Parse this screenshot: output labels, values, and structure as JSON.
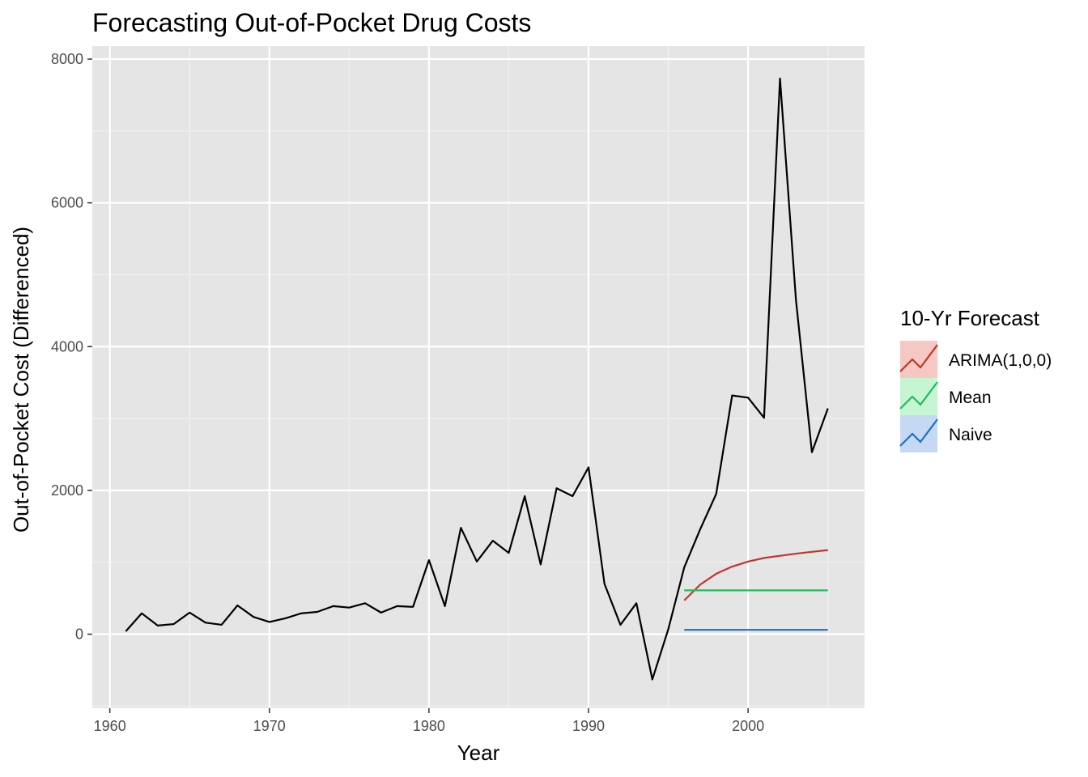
{
  "chart_data": {
    "type": "line",
    "title": "Forecasting Out-of-Pocket Drug Costs",
    "xlabel": "Year",
    "ylabel": "Out-of-Pocket Cost (Differenced)",
    "xlim": [
      1958.9,
      2007.3
    ],
    "ylim": [
      -1030,
      8180
    ],
    "x_ticks": [
      1960,
      1970,
      1980,
      1990,
      2000
    ],
    "y_ticks": [
      0,
      2000,
      4000,
      6000,
      8000
    ],
    "grid": true,
    "background": "#e5e5e5",
    "legend": {
      "title": "10-Yr Forecast",
      "position": "right",
      "entries": [
        {
          "label": "ARIMA(1,0,0)",
          "color": "#c0362c",
          "fill": "#f5c8c3"
        },
        {
          "label": "Mean",
          "color": "#1dbd5a",
          "fill": "#c6f5d4"
        },
        {
          "label": "Naive",
          "color": "#1f6fbe",
          "fill": "#c5d9f5"
        }
      ]
    },
    "series": [
      {
        "color": "#000000",
        "x": [
          1961,
          1962,
          1963,
          1964,
          1965,
          1966,
          1967,
          1968,
          1969,
          1970,
          1971,
          1972,
          1973,
          1974,
          1975,
          1976,
          1977,
          1978,
          1979,
          1980,
          1981,
          1982,
          1983,
          1984,
          1985,
          1986,
          1987,
          1988,
          1989,
          1990,
          1991,
          1992,
          1993,
          1994,
          1995,
          1996,
          1997,
          1998,
          1999,
          2000,
          2001,
          2002,
          2003,
          2004,
          2005
        ],
        "values": [
          40,
          290,
          120,
          140,
          300,
          160,
          130,
          400,
          240,
          170,
          220,
          290,
          310,
          390,
          370,
          430,
          300,
          390,
          380,
          1030,
          390,
          1480,
          1010,
          1300,
          1130,
          1920,
          970,
          2030,
          1920,
          2320,
          700,
          130,
          430,
          -630,
          70,
          930,
          1460,
          1950,
          3320,
          3290,
          3010,
          7730,
          4650,
          2530,
          3140
        ]
      },
      {
        "name": "ARIMA(1,0,0)",
        "color": "#c0362c",
        "x": [
          1996,
          1997,
          1998,
          1999,
          2000,
          2001,
          2002,
          2003,
          2004,
          2005
        ],
        "values": [
          470,
          690,
          840,
          940,
          1010,
          1060,
          1090,
          1120,
          1145,
          1170
        ]
      },
      {
        "name": "Mean",
        "color": "#1dbd5a",
        "x": [
          1996,
          2005
        ],
        "values": [
          610,
          610
        ]
      },
      {
        "name": "Naive",
        "color": "#1f6fbe",
        "x": [
          1996,
          2005
        ],
        "values": [
          60,
          60
        ]
      }
    ]
  }
}
